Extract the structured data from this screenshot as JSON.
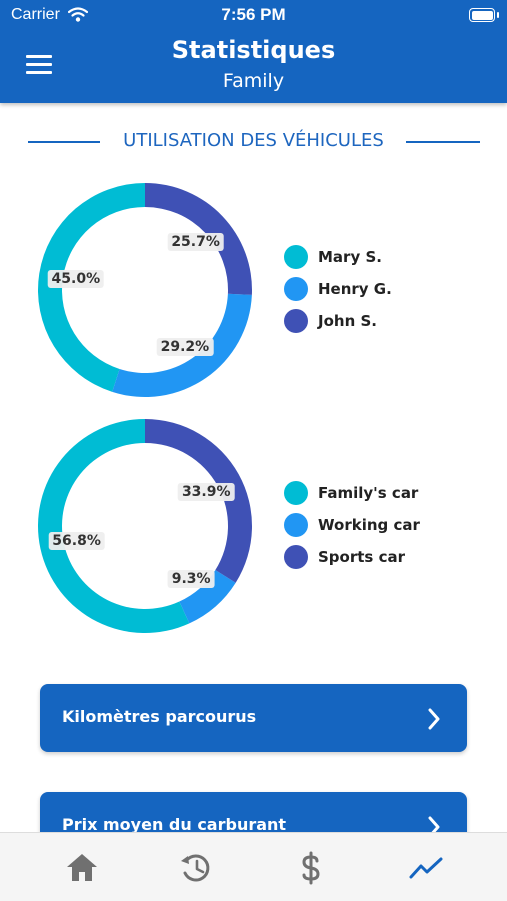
{
  "status_bar": {
    "carrier": "Carrier",
    "time": "7:56 PM"
  },
  "header": {
    "title": "Statistiques",
    "subtitle": "Family"
  },
  "section": {
    "title": "UTILISATION DES VÉHICULES"
  },
  "chart_data": [
    {
      "type": "pie",
      "labels": [
        "Mary S.",
        "Henry G.",
        "John S."
      ],
      "values": [
        45.0,
        29.2,
        25.7
      ],
      "value_labels": [
        "45.0%",
        "29.2%",
        "25.7%"
      ],
      "colors": [
        "#00BCD4",
        "#2196F3",
        "#3F51B5"
      ],
      "legend": "right"
    },
    {
      "type": "pie",
      "labels": [
        "Family's car",
        "Working car",
        "Sports car"
      ],
      "values": [
        56.8,
        9.3,
        33.9
      ],
      "value_labels": [
        "56.8%",
        "9.3%",
        "33.9%"
      ],
      "colors": [
        "#00BCD4",
        "#2196F3",
        "#3F51B5"
      ],
      "legend": "right"
    }
  ],
  "cards": [
    {
      "label": "Kilomètres parcourus"
    },
    {
      "label": "Prix moyen du carburant"
    }
  ],
  "tabs": [
    {
      "icon": "home-icon",
      "active": false
    },
    {
      "icon": "history-icon",
      "active": false
    },
    {
      "icon": "dollar-icon",
      "active": false
    },
    {
      "icon": "trend-icon",
      "active": true
    }
  ],
  "colors": {
    "primary": "#1565C0",
    "tab_active": "#1565C0",
    "tab_inactive": "#707070"
  }
}
